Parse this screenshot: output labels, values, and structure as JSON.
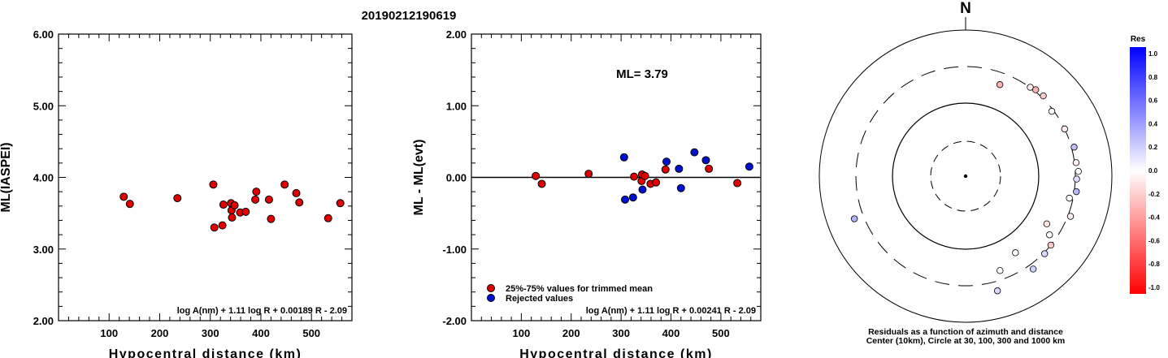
{
  "title": "20190212190619",
  "chart_data": [
    {
      "type": "scatter",
      "xlabel": "Hypocentral distance (km)",
      "ylabel": "ML(IASPEI)",
      "xlim": [
        0,
        580
      ],
      "ylim": [
        2.0,
        6.0
      ],
      "x_ticks": [
        "100",
        "200",
        "300",
        "400",
        "500"
      ],
      "y_ticks": [
        "2.00",
        "3.00",
        "4.00",
        "5.00",
        "6.00"
      ],
      "formula": "log A(nm) + 1.11 log R + 0.00189 R - 2.09",
      "points": [
        {
          "x": 129,
          "y": 3.73
        },
        {
          "x": 141,
          "y": 3.63
        },
        {
          "x": 235,
          "y": 3.71
        },
        {
          "x": 306,
          "y": 3.9
        },
        {
          "x": 308,
          "y": 3.3
        },
        {
          "x": 324,
          "y": 3.33
        },
        {
          "x": 326,
          "y": 3.62
        },
        {
          "x": 341,
          "y": 3.64
        },
        {
          "x": 342,
          "y": 3.54
        },
        {
          "x": 343,
          "y": 3.44
        },
        {
          "x": 348,
          "y": 3.61
        },
        {
          "x": 359,
          "y": 3.51
        },
        {
          "x": 370,
          "y": 3.52
        },
        {
          "x": 389,
          "y": 3.69
        },
        {
          "x": 391,
          "y": 3.8
        },
        {
          "x": 416,
          "y": 3.69
        },
        {
          "x": 420,
          "y": 3.42
        },
        {
          "x": 447,
          "y": 3.9
        },
        {
          "x": 470,
          "y": 3.78
        },
        {
          "x": 476,
          "y": 3.65
        },
        {
          "x": 533,
          "y": 3.43
        },
        {
          "x": 557,
          "y": 3.64
        }
      ]
    },
    {
      "type": "scatter",
      "xlabel": "Hypocentral distance (km)",
      "ylabel": "ML - ML(evt)",
      "xlim": [
        0,
        580
      ],
      "ylim": [
        -2.0,
        2.0
      ],
      "x_ticks": [
        "100",
        "200",
        "300",
        "400",
        "500"
      ],
      "y_ticks": [
        "-2.00",
        "-1.00",
        "0.00",
        "1.00",
        "2.00"
      ],
      "annotation": "ML= 3.79",
      "formula": "log A(nm) + 1.11 log R + 0.00241 R - 2.09",
      "legend": [
        {
          "label": "25%-75% values for trimmed mean",
          "color": "#e00000"
        },
        {
          "label": "Rejected values",
          "color": "#0010d0"
        }
      ],
      "legend_position": "bottom-left",
      "series": [
        {
          "name": "25%-75% values for trimmed mean",
          "color": "#e00000",
          "points": [
            {
              "x": 129,
              "y": 0.02
            },
            {
              "x": 141,
              "y": -0.09
            },
            {
              "x": 235,
              "y": 0.05
            },
            {
              "x": 326,
              "y": 0.01
            },
            {
              "x": 341,
              "y": -0.05
            },
            {
              "x": 342,
              "y": 0.04
            },
            {
              "x": 348,
              "y": 0.02
            },
            {
              "x": 359,
              "y": -0.09
            },
            {
              "x": 370,
              "y": -0.07
            },
            {
              "x": 389,
              "y": 0.11
            },
            {
              "x": 476,
              "y": 0.12
            },
            {
              "x": 533,
              "y": -0.08
            }
          ]
        },
        {
          "name": "Rejected values",
          "color": "#0010d0",
          "points": [
            {
              "x": 306,
              "y": 0.28
            },
            {
              "x": 308,
              "y": -0.31
            },
            {
              "x": 324,
              "y": -0.28
            },
            {
              "x": 343,
              "y": -0.17
            },
            {
              "x": 391,
              "y": 0.22
            },
            {
              "x": 416,
              "y": 0.12
            },
            {
              "x": 420,
              "y": -0.15
            },
            {
              "x": 447,
              "y": 0.35
            },
            {
              "x": 470,
              "y": 0.24
            },
            {
              "x": 557,
              "y": 0.15
            }
          ]
        }
      ]
    },
    {
      "type": "scatter",
      "subtype": "polar",
      "north_label": "N",
      "caption_lines": [
        "Residuals as a function of azimuth and distance",
        "Center (10km), Circle at 30, 100, 300 and 1000 km"
      ],
      "colorbar_title": "Res",
      "colorbar_ticks": [
        "1.0",
        "0.8",
        "0.6",
        "0.4",
        "0.2",
        "0.0",
        "-0.2",
        "-0.4",
        "-0.6",
        "-0.8",
        "-1.0"
      ],
      "circles_km": [
        30,
        100,
        300,
        1000
      ],
      "points": [
        {
          "azimuth": 20.5,
          "distance": 235,
          "residual": -0.3
        },
        {
          "azimuth": 36,
          "distance": 305,
          "residual": -0.05
        },
        {
          "azimuth": 39,
          "distance": 330,
          "residual": -0.3
        },
        {
          "azimuth": 44,
          "distance": 340,
          "residual": -0.2
        },
        {
          "azimuth": 53,
          "distance": 290,
          "residual": 0.0
        },
        {
          "azimuth": 64.5,
          "distance": 300,
          "residual": -0.08
        },
        {
          "azimuth": 75,
          "distance": 350,
          "residual": 0.25
        },
        {
          "azimuth": 83,
          "distance": 330,
          "residual": -0.05
        },
        {
          "azimuth": 87.6,
          "distance": 360,
          "residual": 0.0
        },
        {
          "azimuth": 91.5,
          "distance": 325,
          "residual": 0.12
        },
        {
          "azimuth": 98,
          "distance": 340,
          "residual": 0.28
        },
        {
          "azimuth": 102,
          "distance": 280,
          "residual": 0.0
        },
        {
          "azimuth": 111,
          "distance": 350,
          "residual": -0.05
        },
        {
          "azimuth": 120.5,
          "distance": 215,
          "residual": -0.1
        },
        {
          "azimuth": 125,
          "distance": 260,
          "residual": 0.0
        },
        {
          "azimuth": 129,
          "distance": 300,
          "residual": -0.2
        },
        {
          "azimuth": 134.5,
          "distance": 320,
          "residual": 0.15
        },
        {
          "azimuth": 144,
          "distance": 400,
          "residual": 0.18
        },
        {
          "azimuth": 147,
          "distance": 200,
          "residual": 0.0
        },
        {
          "azimuth": 160,
          "distance": 250,
          "residual": 0.0
        },
        {
          "azimuth": 164.5,
          "distance": 480,
          "residual": 0.15
        },
        {
          "azimuth": 249,
          "distance": 480,
          "residual": 0.3
        }
      ]
    }
  ]
}
